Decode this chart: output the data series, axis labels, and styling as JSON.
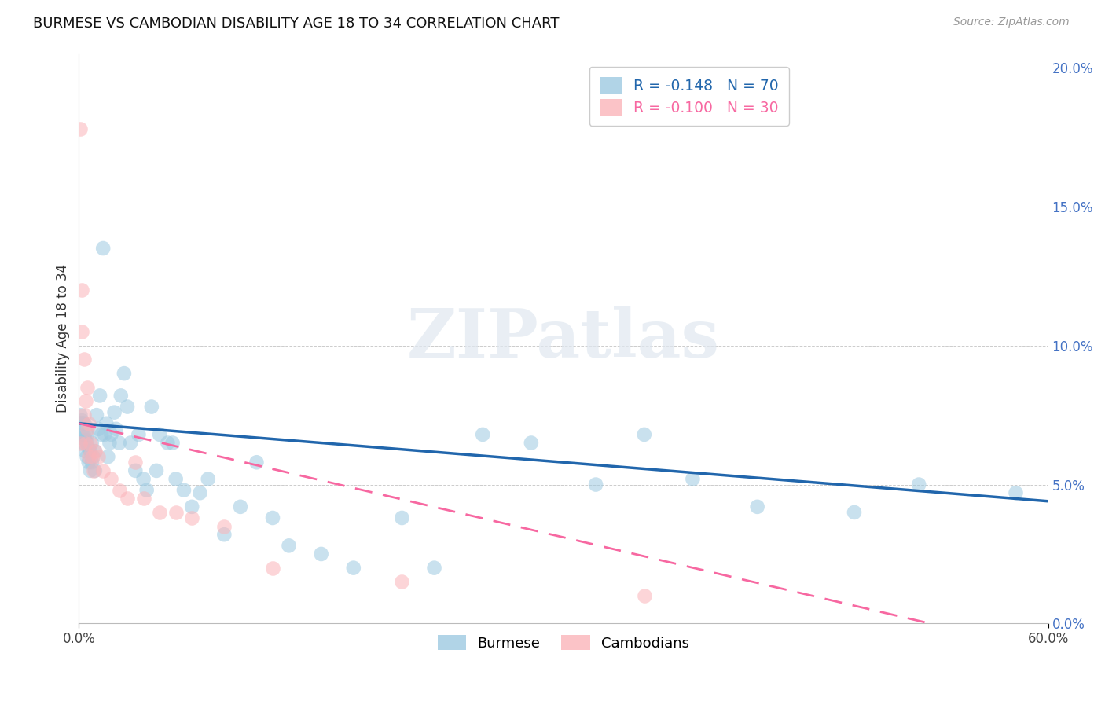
{
  "title": "BURMESE VS CAMBODIAN DISABILITY AGE 18 TO 34 CORRELATION CHART",
  "source": "Source: ZipAtlas.com",
  "ylabel": "Disability Age 18 to 34",
  "xlim": [
    0.0,
    0.6
  ],
  "ylim": [
    0.0,
    0.205
  ],
  "xtick_vals": [
    0.0,
    0.6
  ],
  "ytick_vals": [
    0.0,
    0.05,
    0.1,
    0.15,
    0.2
  ],
  "xtick_labels": [
    "0.0%",
    "60.0%"
  ],
  "ytick_labels": [
    "0.0%",
    "5.0%",
    "10.0%",
    "15.0%",
    "20.0%"
  ],
  "blue_color": "#9ecae1",
  "pink_color": "#fbb4b9",
  "trend_blue_color": "#2166ac",
  "trend_pink_color": "#f768a1",
  "legend_r_blue": "-0.148",
  "legend_n_blue": "70",
  "legend_r_pink": "-0.100",
  "legend_n_pink": "30",
  "watermark": "ZIPatlas",
  "trend_blue_start": 0.072,
  "trend_blue_end": 0.044,
  "trend_pink_start": 0.072,
  "trend_pink_end": -0.01,
  "burmese_x": [
    0.001,
    0.001,
    0.002,
    0.002,
    0.003,
    0.003,
    0.003,
    0.004,
    0.004,
    0.005,
    0.005,
    0.005,
    0.006,
    0.006,
    0.007,
    0.007,
    0.008,
    0.008,
    0.009,
    0.01,
    0.01,
    0.011,
    0.012,
    0.013,
    0.014,
    0.015,
    0.016,
    0.017,
    0.018,
    0.019,
    0.02,
    0.022,
    0.023,
    0.025,
    0.026,
    0.028,
    0.03,
    0.032,
    0.035,
    0.037,
    0.04,
    0.042,
    0.045,
    0.048,
    0.05,
    0.055,
    0.058,
    0.06,
    0.065,
    0.07,
    0.075,
    0.08,
    0.09,
    0.1,
    0.11,
    0.12,
    0.13,
    0.15,
    0.17,
    0.2,
    0.22,
    0.25,
    0.28,
    0.32,
    0.35,
    0.38,
    0.42,
    0.48,
    0.52,
    0.58
  ],
  "burmese_y": [
    0.07,
    0.075,
    0.068,
    0.073,
    0.065,
    0.072,
    0.068,
    0.062,
    0.066,
    0.06,
    0.065,
    0.068,
    0.058,
    0.063,
    0.055,
    0.062,
    0.058,
    0.065,
    0.06,
    0.055,
    0.062,
    0.075,
    0.07,
    0.082,
    0.068,
    0.135,
    0.068,
    0.072,
    0.06,
    0.065,
    0.068,
    0.076,
    0.07,
    0.065,
    0.082,
    0.09,
    0.078,
    0.065,
    0.055,
    0.068,
    0.052,
    0.048,
    0.078,
    0.055,
    0.068,
    0.065,
    0.065,
    0.052,
    0.048,
    0.042,
    0.047,
    0.052,
    0.032,
    0.042,
    0.058,
    0.038,
    0.028,
    0.025,
    0.02,
    0.038,
    0.02,
    0.068,
    0.065,
    0.05,
    0.068,
    0.052,
    0.042,
    0.04,
    0.05,
    0.047
  ],
  "burmese_size": [
    180,
    180,
    180,
    180,
    180,
    180,
    180,
    180,
    180,
    180,
    180,
    180,
    180,
    180,
    180,
    180,
    180,
    180,
    180,
    180,
    180,
    180,
    180,
    180,
    180,
    180,
    180,
    180,
    180,
    180,
    180,
    180,
    180,
    180,
    180,
    180,
    180,
    180,
    180,
    180,
    180,
    180,
    180,
    180,
    180,
    180,
    180,
    180,
    180,
    180,
    180,
    180,
    180,
    180,
    180,
    180,
    180,
    180,
    180,
    180,
    180,
    180,
    180,
    180,
    180,
    180,
    180,
    180,
    180,
    180
  ],
  "burmese_size_special": [
    0,
    600
  ],
  "cambodian_x": [
    0.001,
    0.001,
    0.002,
    0.002,
    0.003,
    0.003,
    0.004,
    0.004,
    0.005,
    0.005,
    0.006,
    0.006,
    0.007,
    0.008,
    0.009,
    0.01,
    0.012,
    0.015,
    0.02,
    0.025,
    0.03,
    0.035,
    0.04,
    0.05,
    0.06,
    0.07,
    0.09,
    0.12,
    0.2,
    0.35
  ],
  "cambodian_y": [
    0.178,
    0.065,
    0.12,
    0.105,
    0.075,
    0.095,
    0.08,
    0.065,
    0.085,
    0.07,
    0.06,
    0.072,
    0.065,
    0.06,
    0.055,
    0.062,
    0.06,
    0.055,
    0.052,
    0.048,
    0.045,
    0.058,
    0.045,
    0.04,
    0.04,
    0.038,
    0.035,
    0.02,
    0.015,
    0.01
  ]
}
